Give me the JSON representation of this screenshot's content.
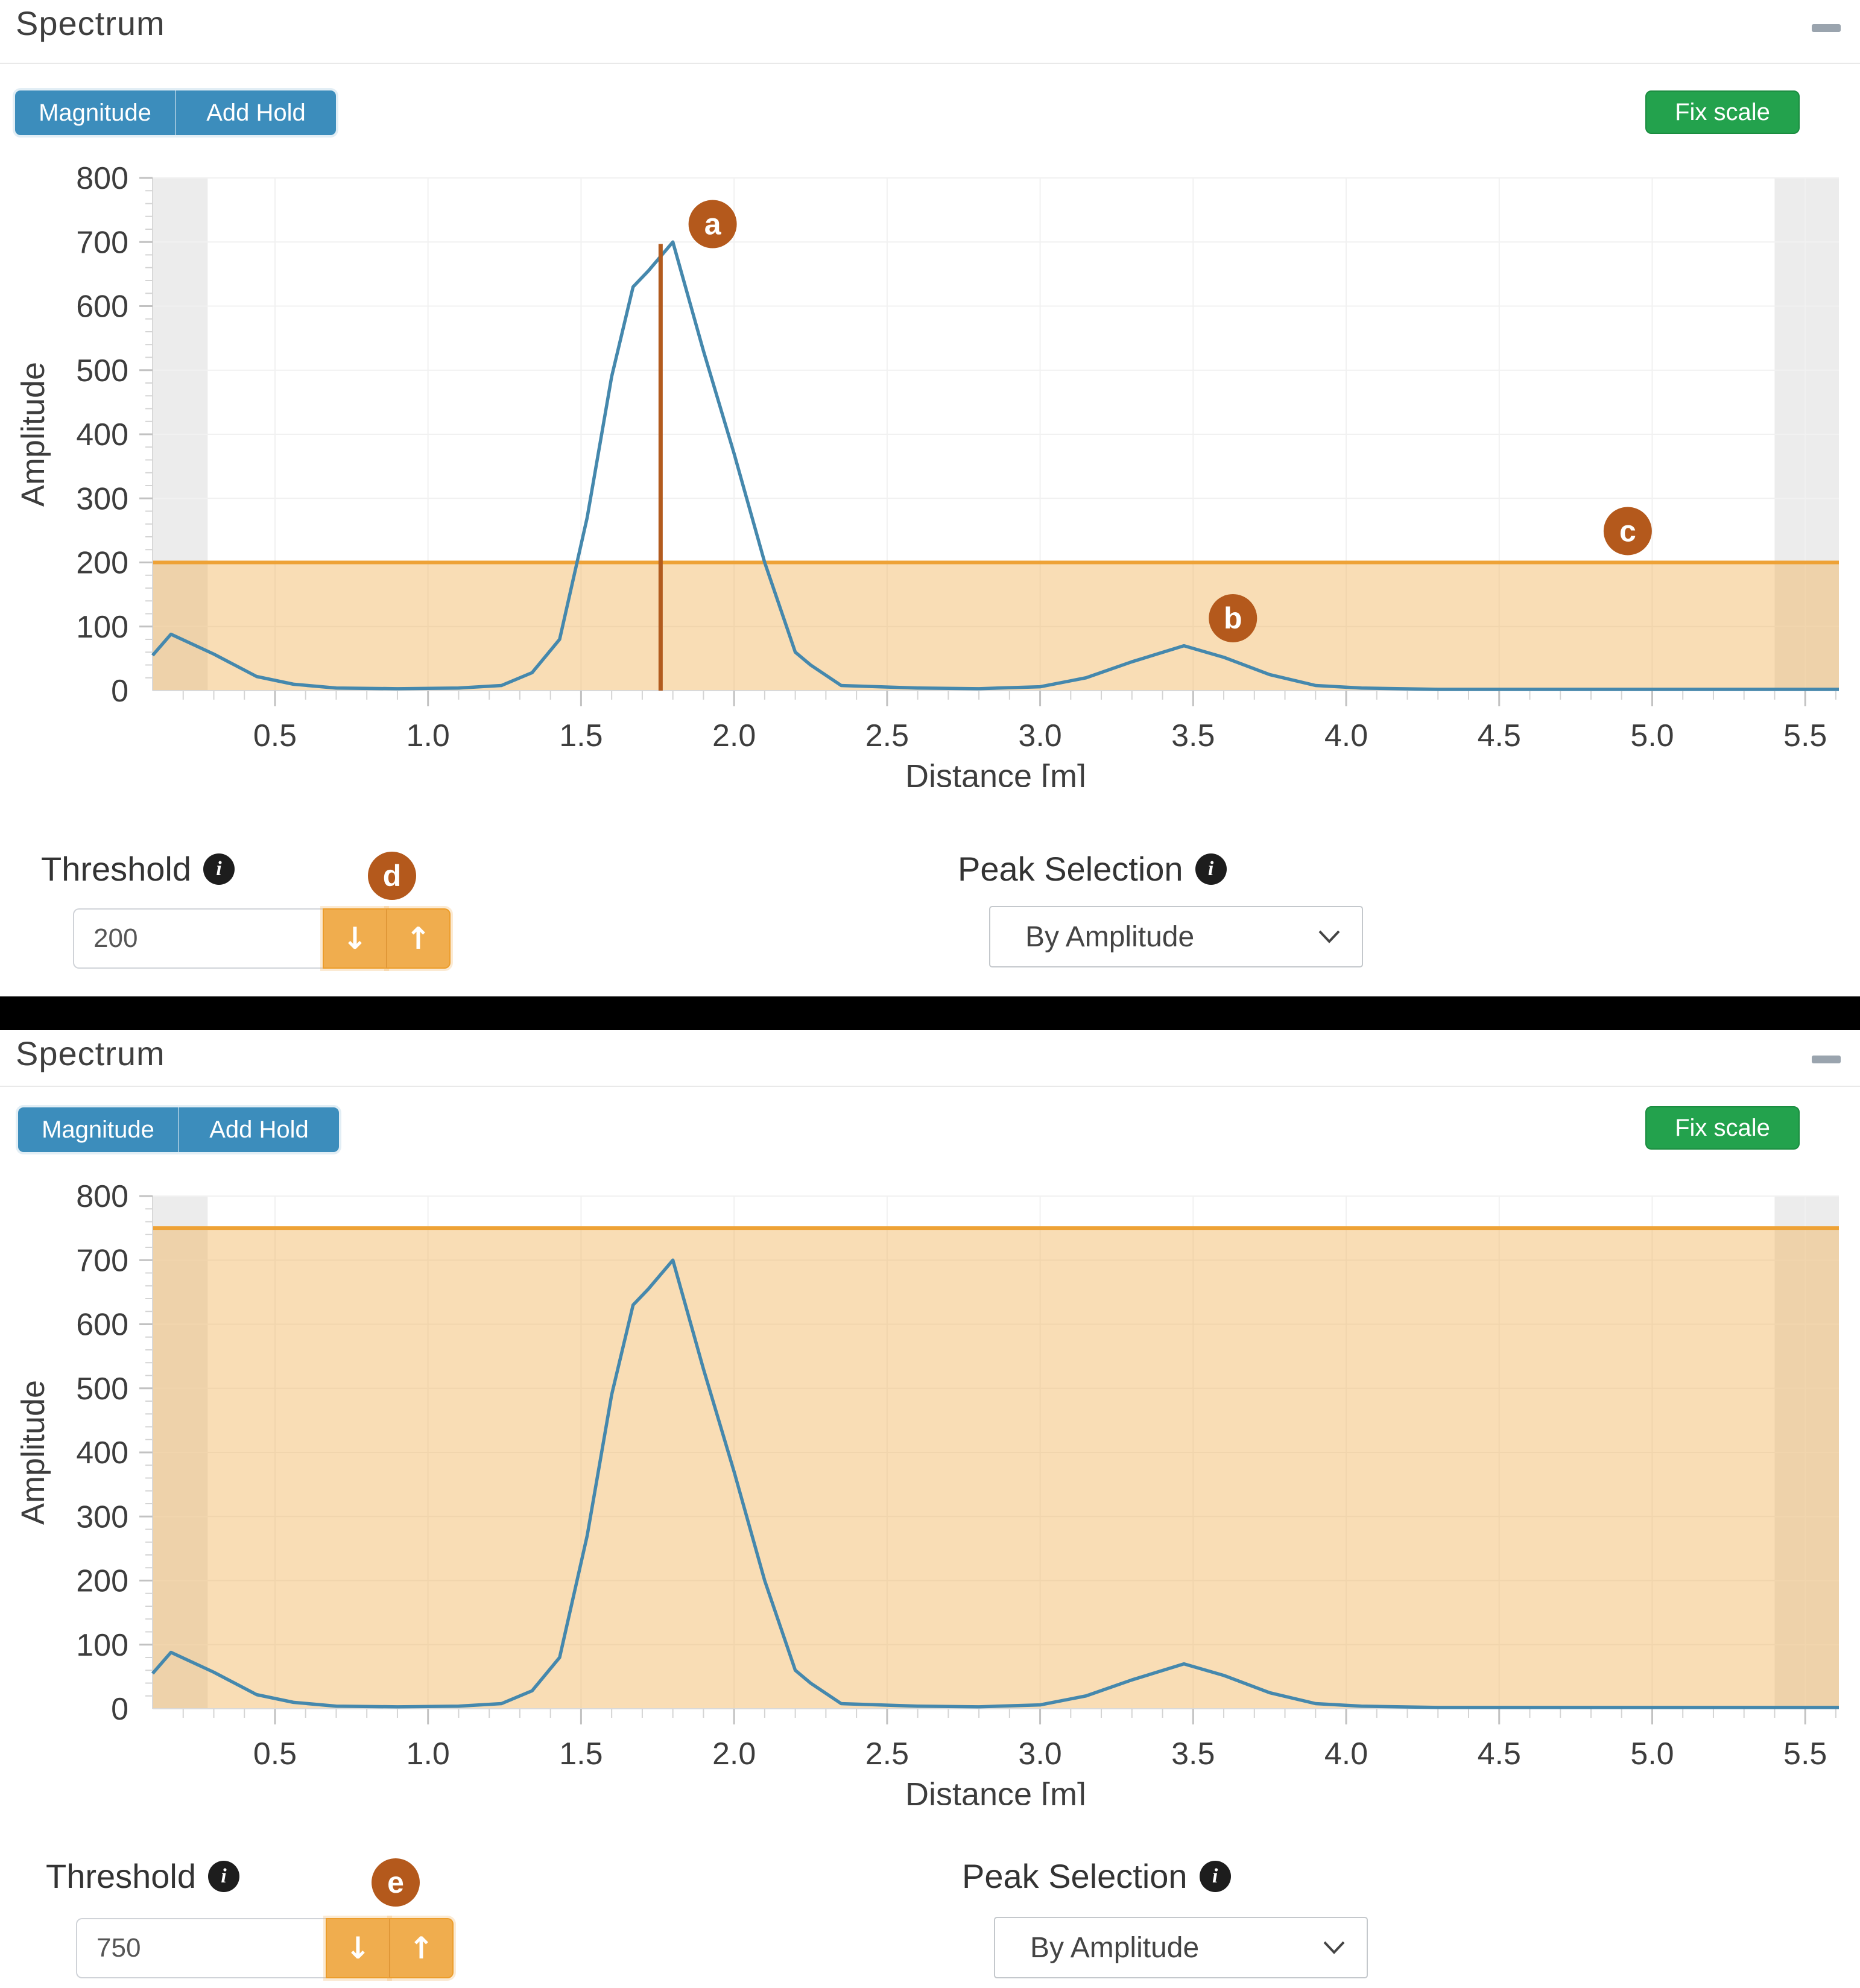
{
  "icons": {
    "down_arrow": "↓",
    "up_arrow": "↑",
    "collapse_minus": "minus",
    "info": "i",
    "chevron_down": "chevron-down"
  },
  "colors": {
    "accent_blue": "#3c8dbc",
    "accent_green": "#23a24d",
    "warning_orange": "#f0ad4e",
    "threshold_line": "#eea236",
    "threshold_fill": "#f0ad4e",
    "curve_blue": "#4588ad",
    "marker_brown": "#b4591c",
    "cursor_line": "#b25b1e",
    "masked_gray": "#ececec"
  },
  "panels": [
    {
      "title": "Spectrum",
      "toolbar": {
        "magnitude_label": "Magnitude",
        "add_hold_label": "Add Hold",
        "fix_scale_label": "Fix scale"
      },
      "threshold": {
        "label": "Threshold",
        "value": "200",
        "marker": "d"
      },
      "peak_selection": {
        "label": "Peak Selection",
        "selected": "By Amplitude"
      }
    },
    {
      "title": "Spectrum",
      "toolbar": {
        "magnitude_label": "Magnitude",
        "add_hold_label": "Add Hold",
        "fix_scale_label": "Fix scale"
      },
      "threshold": {
        "label": "Threshold",
        "value": "750",
        "marker": "e"
      },
      "peak_selection": {
        "label": "Peak Selection",
        "selected": "By Amplitude"
      }
    }
  ],
  "chart_data": [
    {
      "type": "line",
      "title": "Spectrum",
      "xlabel": "Distance [m]",
      "ylabel": "Amplitude",
      "xlim": [
        0.1,
        5.61
      ],
      "ylim": [
        0,
        800
      ],
      "x_ticks": [
        0.5,
        1.0,
        1.5,
        2.0,
        2.5,
        3.0,
        3.5,
        4.0,
        4.5,
        5.0,
        5.5
      ],
      "y_ticks": [
        0,
        100,
        200,
        300,
        400,
        500,
        600,
        700,
        800
      ],
      "grid": true,
      "legend": false,
      "threshold": 200,
      "masked_regions": [
        [
          0.1,
          0.28
        ],
        [
          5.4,
          5.61
        ]
      ],
      "cursor": {
        "x": 1.76,
        "y_from": 0,
        "y_to": 697
      },
      "series": [
        {
          "name": "Magnitude",
          "x": [
            0.1,
            0.16,
            0.3,
            0.44,
            0.56,
            0.7,
            0.9,
            1.1,
            1.24,
            1.34,
            1.43,
            1.52,
            1.6,
            1.67,
            1.72,
            1.8,
            1.9,
            2.0,
            2.1,
            2.2,
            2.25,
            2.35,
            2.6,
            2.8,
            3.0,
            3.15,
            3.3,
            3.47,
            3.6,
            3.75,
            3.9,
            4.05,
            4.3,
            4.7,
            5.1,
            5.61
          ],
          "y": [
            55,
            88,
            57,
            22,
            10,
            4,
            3,
            4,
            8,
            28,
            80,
            270,
            490,
            630,
            655,
            700,
            530,
            370,
            200,
            60,
            40,
            8,
            4,
            3,
            6,
            20,
            45,
            70,
            52,
            25,
            8,
            4,
            2,
            2,
            2,
            2
          ]
        }
      ],
      "annotations": [
        {
          "label": "a",
          "x": 1.93,
          "y": 728
        },
        {
          "label": "b",
          "x": 3.63,
          "y": 113
        },
        {
          "label": "c",
          "x": 4.92,
          "y": 249
        }
      ]
    },
    {
      "type": "line",
      "title": "Spectrum",
      "xlabel": "Distance [m]",
      "ylabel": "Amplitude",
      "xlim": [
        0.1,
        5.61
      ],
      "ylim": [
        0,
        800
      ],
      "x_ticks": [
        0.5,
        1.0,
        1.5,
        2.0,
        2.5,
        3.0,
        3.5,
        4.0,
        4.5,
        5.0,
        5.5
      ],
      "y_ticks": [
        0,
        100,
        200,
        300,
        400,
        500,
        600,
        700,
        800
      ],
      "grid": true,
      "legend": false,
      "threshold": 750,
      "masked_regions": [
        [
          0.1,
          0.28
        ],
        [
          5.4,
          5.61
        ]
      ],
      "cursor": null,
      "series": [
        {
          "name": "Magnitude",
          "x": [
            0.1,
            0.16,
            0.3,
            0.44,
            0.56,
            0.7,
            0.9,
            1.1,
            1.24,
            1.34,
            1.43,
            1.52,
            1.6,
            1.67,
            1.72,
            1.8,
            1.9,
            2.0,
            2.1,
            2.2,
            2.25,
            2.35,
            2.6,
            2.8,
            3.0,
            3.15,
            3.3,
            3.47,
            3.6,
            3.75,
            3.9,
            4.05,
            4.3,
            4.7,
            5.1,
            5.61
          ],
          "y": [
            55,
            88,
            57,
            22,
            10,
            4,
            3,
            4,
            8,
            28,
            80,
            270,
            490,
            630,
            655,
            700,
            530,
            370,
            200,
            60,
            40,
            8,
            4,
            3,
            6,
            20,
            45,
            70,
            52,
            25,
            8,
            4,
            2,
            2,
            2,
            2
          ]
        }
      ],
      "annotations": []
    }
  ]
}
